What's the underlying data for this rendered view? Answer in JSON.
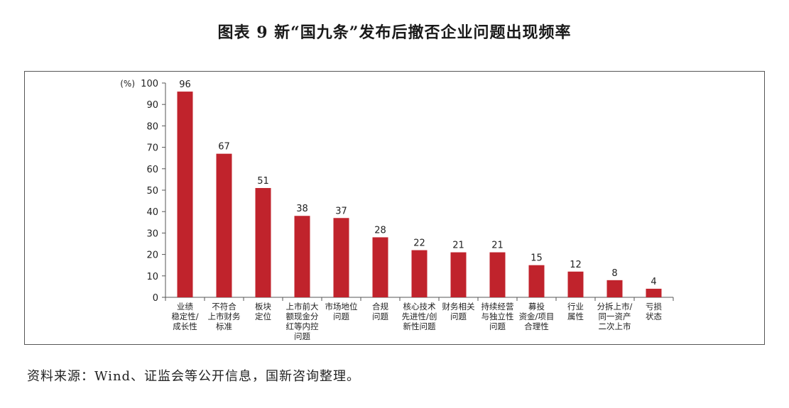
{
  "title": "图表 9  新“国九条”发布后撤否企业问题出现频率",
  "source": "资料来源：Wind、证监会等公开信息，国新咨询整理。",
  "colors": {
    "bar": "#c0232c",
    "axis": "#555555",
    "text": "#222222"
  },
  "chart_data": {
    "type": "bar",
    "title": "",
    "xlabel": "",
    "ylabel": "(%)",
    "ylim": [
      0,
      100
    ],
    "yticks": [
      0,
      10,
      20,
      30,
      40,
      50,
      60,
      70,
      80,
      90,
      100
    ],
    "categories": [
      "业绩稳定性/成长性",
      "不符合上市财务标准",
      "板块定位",
      "上市前大额现金分红等内控问题",
      "市场地位问题",
      "合规问题",
      "核心技术先进性/创新性问题",
      "财务相关问题",
      "持续经营与独立性问题",
      "募投资金/项目合理性",
      "行业属性",
      "分拆上市/同一资产二次上市",
      "亏损状态"
    ],
    "category_lines": [
      [
        "业绩",
        "稳定性/",
        "成长性"
      ],
      [
        "不符合",
        "上市财务",
        "标准"
      ],
      [
        "板块",
        "定位"
      ],
      [
        "上市前大",
        "额现金分",
        "红等内控",
        "问题"
      ],
      [
        "市场地位",
        "问题"
      ],
      [
        "合规",
        "问题"
      ],
      [
        "核心技术",
        "先进性/创",
        "新性问题"
      ],
      [
        "财务相关",
        "问题"
      ],
      [
        "持续经营",
        "与独立性",
        "问题"
      ],
      [
        "募投",
        "资金/项目",
        "合理性"
      ],
      [
        "行业",
        "属性"
      ],
      [
        "分拆上市/",
        "同一资产",
        "二次上市"
      ],
      [
        "亏损",
        "状态"
      ]
    ],
    "values": [
      96,
      67,
      51,
      38,
      37,
      28,
      22,
      21,
      21,
      15,
      12,
      8,
      4
    ],
    "grid": false,
    "legend": "none"
  }
}
